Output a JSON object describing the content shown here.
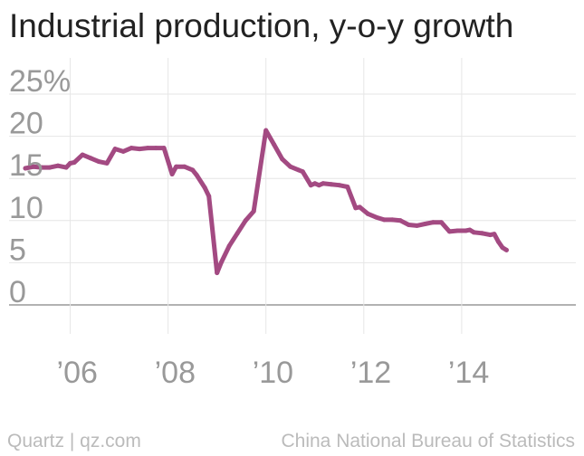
{
  "header": {
    "title": "Industrial production, y-o-y growth"
  },
  "footer": {
    "credit": "Quartz | qz.com",
    "source": "China National Bureau of Statistics"
  },
  "colors": {
    "line": "#a34a82",
    "grid": "#e6e6e6",
    "baseline": "#999999",
    "tick_text": "#999999"
  },
  "chart_data": {
    "type": "line",
    "title": "Industrial production, y-o-y growth",
    "xlabel": "",
    "ylabel": "",
    "xlim": [
      "2004-10",
      "2016-05"
    ],
    "ylim": [
      0,
      25
    ],
    "y_ticks": [
      0,
      5,
      10,
      15,
      20,
      25
    ],
    "y_tick_labels": [
      "0",
      "5",
      "10",
      "15",
      "20",
      "25%"
    ],
    "x_ticks": [
      "2006-01",
      "2008-01",
      "2010-01",
      "2012-01",
      "2014-01"
    ],
    "x_tick_labels": [
      "’06",
      "’08",
      "’10",
      "’12",
      "’14"
    ],
    "grid": true,
    "legend": "none",
    "series": [
      {
        "color": "#a34a82",
        "points": [
          [
            "2005-02",
            16.2
          ],
          [
            "2005-04",
            16.4
          ],
          [
            "2005-06",
            16.3
          ],
          [
            "2005-08",
            16.3
          ],
          [
            "2005-10",
            16.5
          ],
          [
            "2005-12",
            16.3
          ],
          [
            "2006-01",
            16.8
          ],
          [
            "2006-02",
            16.9
          ],
          [
            "2006-04",
            17.8
          ],
          [
            "2006-06",
            17.4
          ],
          [
            "2006-08",
            17.0
          ],
          [
            "2006-10",
            16.8
          ],
          [
            "2006-12",
            18.5
          ],
          [
            "2007-02",
            18.2
          ],
          [
            "2007-04",
            18.6
          ],
          [
            "2007-06",
            18.5
          ],
          [
            "2007-08",
            18.6
          ],
          [
            "2007-10",
            18.6
          ],
          [
            "2007-12",
            18.6
          ],
          [
            "2008-02",
            15.5
          ],
          [
            "2008-03",
            16.4
          ],
          [
            "2008-05",
            16.4
          ],
          [
            "2008-07",
            16.0
          ],
          [
            "2008-08",
            15.4
          ],
          [
            "2008-10",
            13.9
          ],
          [
            "2008-11",
            12.9
          ],
          [
            "2009-01",
            3.8
          ],
          [
            "2009-02",
            5.0
          ],
          [
            "2009-04",
            7.0
          ],
          [
            "2009-06",
            8.5
          ],
          [
            "2009-08",
            10.0
          ],
          [
            "2009-10",
            11.1
          ],
          [
            "2010-01",
            20.7
          ],
          [
            "2010-03",
            19.0
          ],
          [
            "2010-05",
            17.3
          ],
          [
            "2010-07",
            16.4
          ],
          [
            "2010-09",
            16.0
          ],
          [
            "2010-10",
            15.8
          ],
          [
            "2010-12",
            14.2
          ],
          [
            "2011-01",
            14.4
          ],
          [
            "2011-02",
            14.2
          ],
          [
            "2011-03",
            14.4
          ],
          [
            "2011-05",
            14.3
          ],
          [
            "2011-07",
            14.2
          ],
          [
            "2011-09",
            14.0
          ],
          [
            "2011-11",
            11.5
          ],
          [
            "2011-12",
            11.6
          ],
          [
            "2012-02",
            10.8
          ],
          [
            "2012-04",
            10.4
          ],
          [
            "2012-06",
            10.1
          ],
          [
            "2012-08",
            10.1
          ],
          [
            "2012-10",
            10.0
          ],
          [
            "2012-12",
            9.5
          ],
          [
            "2013-02",
            9.4
          ],
          [
            "2013-04",
            9.6
          ],
          [
            "2013-06",
            9.8
          ],
          [
            "2013-08",
            9.8
          ],
          [
            "2013-10",
            8.7
          ],
          [
            "2013-12",
            8.8
          ],
          [
            "2014-02",
            8.8
          ],
          [
            "2014-03",
            8.9
          ],
          [
            "2014-04",
            8.6
          ],
          [
            "2014-06",
            8.5
          ],
          [
            "2014-08",
            8.3
          ],
          [
            "2014-09",
            8.4
          ],
          [
            "2014-10",
            7.5
          ],
          [
            "2014-11",
            6.8
          ],
          [
            "2014-12",
            6.5
          ]
        ]
      }
    ]
  }
}
